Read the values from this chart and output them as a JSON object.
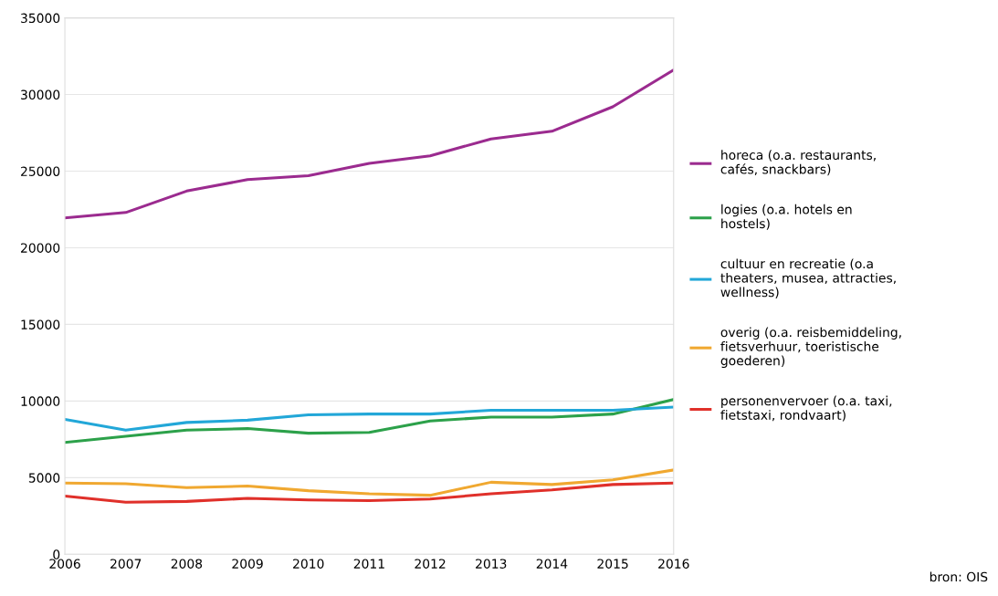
{
  "chart_data": {
    "type": "line",
    "x": [
      2006,
      2007,
      2008,
      2009,
      2010,
      2011,
      2012,
      2013,
      2014,
      2015,
      2016
    ],
    "xlim": [
      2006,
      2016
    ],
    "xticks": [
      2006,
      2007,
      2008,
      2009,
      2010,
      2011,
      2012,
      2013,
      2014,
      2015,
      2016
    ],
    "ylim": [
      0,
      35000
    ],
    "yticks": [
      0,
      5000,
      10000,
      15000,
      20000,
      25000,
      30000,
      35000
    ],
    "grid": "y",
    "legend": "right",
    "marker": "none",
    "line_style": "solid",
    "series": [
      {
        "name": "horeca (o.a. restaurants, cafés, snackbars)",
        "color": "#9b2b8f",
        "values": [
          21950,
          22300,
          23700,
          24450,
          24700,
          25500,
          26000,
          27100,
          27600,
          29200,
          31600
        ]
      },
      {
        "name": "logies (o.a. hotels en hostels)",
        "color": "#2ca14a",
        "values": [
          7300,
          7700,
          8100,
          8200,
          7900,
          7950,
          8700,
          8950,
          8950,
          9150,
          10100
        ]
      },
      {
        "name": "cultuur en recreatie (o.a theaters, musea, attracties, wellness)",
        "color": "#22a7d8",
        "values": [
          8800,
          8100,
          8600,
          8750,
          9100,
          9150,
          9150,
          9400,
          9400,
          9400,
          9600
        ]
      },
      {
        "name": "overig (o.a. reisbemiddeling, fietsverhuur, toeristische goederen)",
        "color": "#f0a830",
        "values": [
          4650,
          4600,
          4350,
          4450,
          4150,
          3950,
          3850,
          4700,
          4550,
          4850,
          5500
        ]
      },
      {
        "name": "personenvervoer (o.a. taxi, fietstaxi, rondvaart)",
        "color": "#e0302a",
        "values": [
          3800,
          3400,
          3450,
          3650,
          3550,
          3500,
          3600,
          3950,
          4200,
          4550,
          4650
        ]
      }
    ],
    "annotations": [
      "bron: OIS"
    ]
  }
}
